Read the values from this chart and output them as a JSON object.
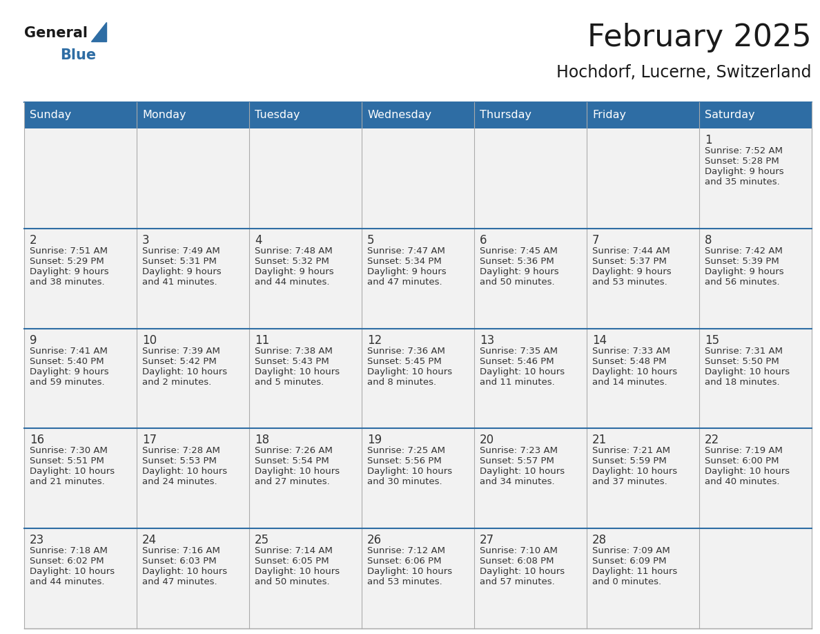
{
  "title": "February 2025",
  "subtitle": "Hochdorf, Lucerne, Switzerland",
  "header_bg": "#2E6DA4",
  "header_text": "#FFFFFF",
  "row_bg_odd": "#F0F0F0",
  "row_bg_even": "#FFFFFF",
  "day_number_color": "#333333",
  "info_text_color": "#333333",
  "border_color": "#AAAAAA",
  "row_border_color": "#2E6DA4",
  "days_of_week": [
    "Sunday",
    "Monday",
    "Tuesday",
    "Wednesday",
    "Thursday",
    "Friday",
    "Saturday"
  ],
  "logo_general_color": "#1a1a1a",
  "logo_blue_color": "#2E6DA4",
  "calendar_data": [
    [
      null,
      null,
      null,
      null,
      null,
      null,
      {
        "day": "1",
        "sunrise": "7:52 AM",
        "sunset": "5:28 PM",
        "daylight_l1": "9 hours",
        "daylight_l2": "and 35 minutes."
      }
    ],
    [
      {
        "day": "2",
        "sunrise": "7:51 AM",
        "sunset": "5:29 PM",
        "daylight_l1": "9 hours",
        "daylight_l2": "and 38 minutes."
      },
      {
        "day": "3",
        "sunrise": "7:49 AM",
        "sunset": "5:31 PM",
        "daylight_l1": "9 hours",
        "daylight_l2": "and 41 minutes."
      },
      {
        "day": "4",
        "sunrise": "7:48 AM",
        "sunset": "5:32 PM",
        "daylight_l1": "9 hours",
        "daylight_l2": "and 44 minutes."
      },
      {
        "day": "5",
        "sunrise": "7:47 AM",
        "sunset": "5:34 PM",
        "daylight_l1": "9 hours",
        "daylight_l2": "and 47 minutes."
      },
      {
        "day": "6",
        "sunrise": "7:45 AM",
        "sunset": "5:36 PM",
        "daylight_l1": "9 hours",
        "daylight_l2": "and 50 minutes."
      },
      {
        "day": "7",
        "sunrise": "7:44 AM",
        "sunset": "5:37 PM",
        "daylight_l1": "9 hours",
        "daylight_l2": "and 53 minutes."
      },
      {
        "day": "8",
        "sunrise": "7:42 AM",
        "sunset": "5:39 PM",
        "daylight_l1": "9 hours",
        "daylight_l2": "and 56 minutes."
      }
    ],
    [
      {
        "day": "9",
        "sunrise": "7:41 AM",
        "sunset": "5:40 PM",
        "daylight_l1": "9 hours",
        "daylight_l2": "and 59 minutes."
      },
      {
        "day": "10",
        "sunrise": "7:39 AM",
        "sunset": "5:42 PM",
        "daylight_l1": "10 hours",
        "daylight_l2": "and 2 minutes."
      },
      {
        "day": "11",
        "sunrise": "7:38 AM",
        "sunset": "5:43 PM",
        "daylight_l1": "10 hours",
        "daylight_l2": "and 5 minutes."
      },
      {
        "day": "12",
        "sunrise": "7:36 AM",
        "sunset": "5:45 PM",
        "daylight_l1": "10 hours",
        "daylight_l2": "and 8 minutes."
      },
      {
        "day": "13",
        "sunrise": "7:35 AM",
        "sunset": "5:46 PM",
        "daylight_l1": "10 hours",
        "daylight_l2": "and 11 minutes."
      },
      {
        "day": "14",
        "sunrise": "7:33 AM",
        "sunset": "5:48 PM",
        "daylight_l1": "10 hours",
        "daylight_l2": "and 14 minutes."
      },
      {
        "day": "15",
        "sunrise": "7:31 AM",
        "sunset": "5:50 PM",
        "daylight_l1": "10 hours",
        "daylight_l2": "and 18 minutes."
      }
    ],
    [
      {
        "day": "16",
        "sunrise": "7:30 AM",
        "sunset": "5:51 PM",
        "daylight_l1": "10 hours",
        "daylight_l2": "and 21 minutes."
      },
      {
        "day": "17",
        "sunrise": "7:28 AM",
        "sunset": "5:53 PM",
        "daylight_l1": "10 hours",
        "daylight_l2": "and 24 minutes."
      },
      {
        "day": "18",
        "sunrise": "7:26 AM",
        "sunset": "5:54 PM",
        "daylight_l1": "10 hours",
        "daylight_l2": "and 27 minutes."
      },
      {
        "day": "19",
        "sunrise": "7:25 AM",
        "sunset": "5:56 PM",
        "daylight_l1": "10 hours",
        "daylight_l2": "and 30 minutes."
      },
      {
        "day": "20",
        "sunrise": "7:23 AM",
        "sunset": "5:57 PM",
        "daylight_l1": "10 hours",
        "daylight_l2": "and 34 minutes."
      },
      {
        "day": "21",
        "sunrise": "7:21 AM",
        "sunset": "5:59 PM",
        "daylight_l1": "10 hours",
        "daylight_l2": "and 37 minutes."
      },
      {
        "day": "22",
        "sunrise": "7:19 AM",
        "sunset": "6:00 PM",
        "daylight_l1": "10 hours",
        "daylight_l2": "and 40 minutes."
      }
    ],
    [
      {
        "day": "23",
        "sunrise": "7:18 AM",
        "sunset": "6:02 PM",
        "daylight_l1": "10 hours",
        "daylight_l2": "and 44 minutes."
      },
      {
        "day": "24",
        "sunrise": "7:16 AM",
        "sunset": "6:03 PM",
        "daylight_l1": "10 hours",
        "daylight_l2": "and 47 minutes."
      },
      {
        "day": "25",
        "sunrise": "7:14 AM",
        "sunset": "6:05 PM",
        "daylight_l1": "10 hours",
        "daylight_l2": "and 50 minutes."
      },
      {
        "day": "26",
        "sunrise": "7:12 AM",
        "sunset": "6:06 PM",
        "daylight_l1": "10 hours",
        "daylight_l2": "and 53 minutes."
      },
      {
        "day": "27",
        "sunrise": "7:10 AM",
        "sunset": "6:08 PM",
        "daylight_l1": "10 hours",
        "daylight_l2": "and 57 minutes."
      },
      {
        "day": "28",
        "sunrise": "7:09 AM",
        "sunset": "6:09 PM",
        "daylight_l1": "11 hours",
        "daylight_l2": "and 0 minutes."
      },
      null
    ]
  ]
}
